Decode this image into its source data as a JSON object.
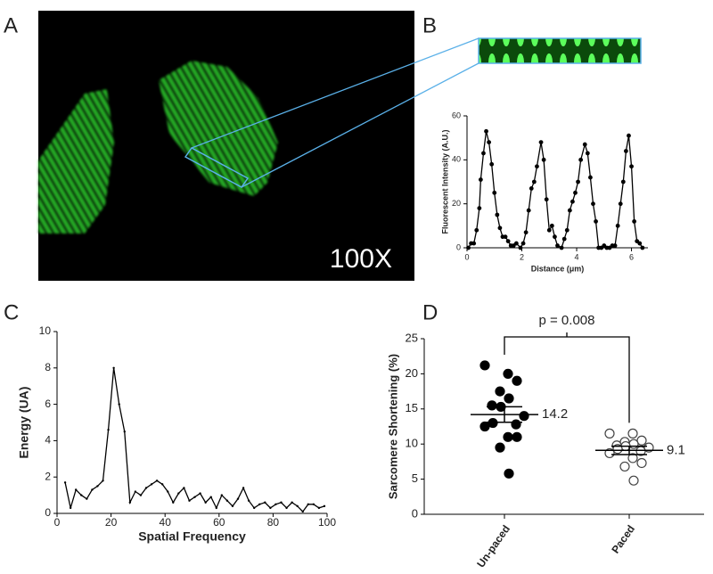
{
  "panel_labels": [
    "A",
    "B",
    "C",
    "D"
  ],
  "image_label": "100X",
  "chart_data": [
    {
      "type": "line",
      "xlabel": "Distance (μm)",
      "ylabel": "Fluorescent Intensity (A.U.)",
      "x": [
        0.05,
        0.15,
        0.25,
        0.35,
        0.45,
        0.5,
        0.6,
        0.7,
        0.8,
        0.9,
        1.0,
        1.1,
        1.2,
        1.3,
        1.4,
        1.5,
        1.6,
        1.7,
        1.8,
        1.95,
        2.05,
        2.15,
        2.25,
        2.35,
        2.45,
        2.55,
        2.7,
        2.8,
        2.9,
        3.0,
        3.1,
        3.2,
        3.3,
        3.45,
        3.55,
        3.65,
        3.75,
        3.85,
        3.95,
        4.05,
        4.15,
        4.3,
        4.4,
        4.5,
        4.6,
        4.7,
        4.8,
        4.9,
        5.0,
        5.1,
        5.2,
        5.3,
        5.4,
        5.5,
        5.6,
        5.7,
        5.8,
        5.9,
        6.0,
        6.1,
        6.2,
        6.3,
        6.4
      ],
      "values": [
        0,
        2,
        2,
        8,
        18,
        31,
        43,
        53,
        48,
        38,
        25,
        15,
        9,
        5,
        5,
        3,
        1,
        1,
        2,
        0,
        2,
        7,
        17,
        27,
        30,
        37,
        48,
        40,
        22,
        8,
        10,
        5,
        1,
        0,
        4,
        8,
        17,
        21,
        25,
        30,
        40,
        47,
        43,
        32,
        20,
        12,
        0,
        0,
        1,
        0,
        0,
        1,
        1,
        10,
        20,
        30,
        44,
        51,
        37,
        12,
        3,
        2,
        0
      ],
      "color": "#000000",
      "xlim": [
        0,
        6.6
      ],
      "xticks": [
        0,
        2,
        4,
        6
      ],
      "ylim": [
        0,
        60
      ],
      "yticks": [
        0,
        20,
        40,
        60
      ]
    },
    {
      "type": "line",
      "xlabel": "Spatial Frequency",
      "ylabel": "Energy (UA)",
      "x": [
        3,
        5,
        7,
        9,
        11,
        13,
        15,
        17,
        19,
        21,
        23,
        25,
        27,
        29,
        31,
        33,
        35,
        37,
        39,
        41,
        43,
        45,
        47,
        49,
        51,
        53,
        55,
        57,
        59,
        61,
        63,
        65,
        67,
        69,
        71,
        73,
        75,
        77,
        79,
        81,
        83,
        85,
        87,
        89,
        91,
        93,
        95,
        97,
        99
      ],
      "values": [
        1.7,
        0.3,
        1.3,
        1.0,
        0.8,
        1.3,
        1.5,
        1.8,
        4.6,
        8.0,
        6.0,
        4.5,
        0.6,
        1.2,
        1.0,
        1.4,
        1.6,
        1.8,
        1.6,
        1.2,
        0.6,
        1.1,
        1.4,
        0.7,
        0.9,
        1.1,
        0.6,
        0.9,
        0.3,
        1.0,
        0.7,
        0.4,
        0.8,
        1.4,
        0.7,
        0.3,
        0.5,
        0.6,
        0.3,
        0.5,
        0.6,
        0.3,
        0.6,
        0.4,
        0.1,
        0.5,
        0.5,
        0.3,
        0.4
      ],
      "color": "#000000",
      "xlim": [
        0,
        100
      ],
      "xticks": [
        0,
        20,
        40,
        60,
        80,
        100
      ],
      "ylim": [
        0,
        10
      ],
      "yticks": [
        0,
        2,
        4,
        6,
        8,
        10
      ]
    },
    {
      "type": "dot",
      "ylabel": "Sarcomere Shortening (%)",
      "categories": [
        "Un-paced",
        "Paced"
      ],
      "values": [
        [
          21.2,
          20,
          19,
          17.5,
          16.5,
          15.5,
          15.3,
          14,
          13,
          12.8,
          12.5,
          11,
          11,
          9.5,
          5.8
        ],
        [
          11.5,
          11.5,
          10.5,
          10.3,
          10,
          9.8,
          9.7,
          9.5,
          9.3,
          9.0,
          8.7,
          8.0,
          7.3,
          6.8,
          4.8
        ]
      ],
      "markers": [
        "filled",
        "open"
      ],
      "means": [
        14.2,
        9.1
      ],
      "sem": [
        1.1,
        0.6
      ],
      "annotation": "p = 0.008",
      "ylim": [
        0,
        25
      ],
      "yticks": [
        0,
        5,
        10,
        15,
        20,
        25
      ]
    }
  ]
}
